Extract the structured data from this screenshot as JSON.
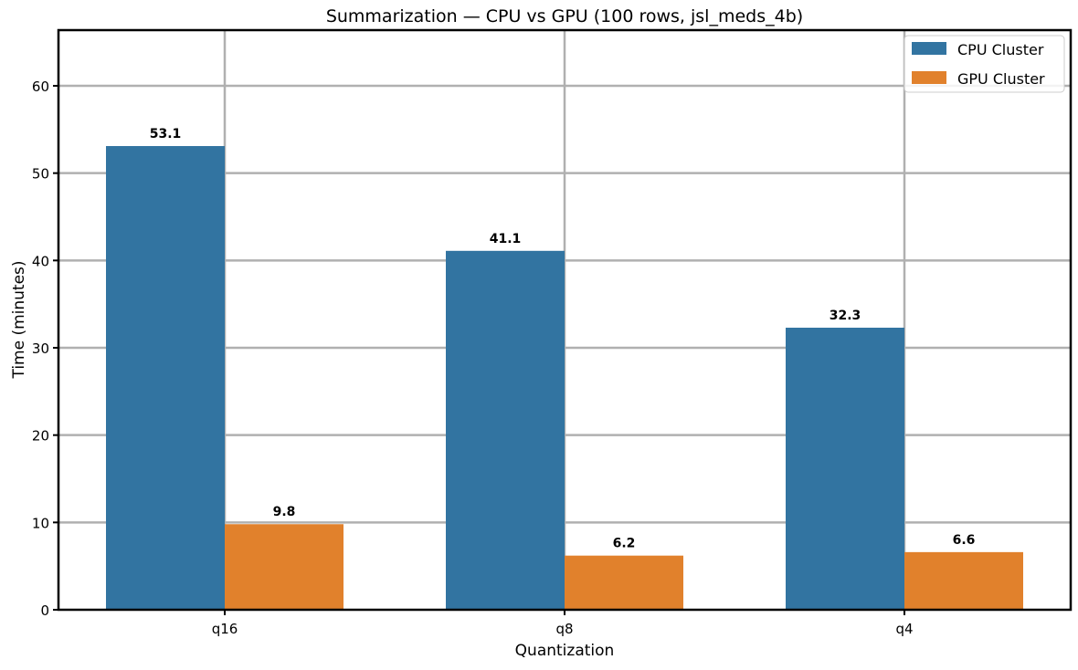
{
  "chart_data": {
    "type": "bar",
    "title": "Summarization — CPU vs GPU (100 rows, jsl_meds_4b)",
    "xlabel": "Quantization",
    "ylabel": "Time (minutes)",
    "categories": [
      "q16",
      "q8",
      "q4"
    ],
    "series": [
      {
        "name": "CPU Cluster",
        "color": "#3274a1",
        "values": [
          53.1,
          41.1,
          32.3
        ]
      },
      {
        "name": "GPU Cluster",
        "color": "#e1812c",
        "values": [
          9.8,
          6.2,
          6.6
        ]
      }
    ],
    "ylim": [
      0,
      66.3
    ],
    "yticks": [
      0,
      10,
      20,
      30,
      40,
      50,
      60
    ],
    "grid": true,
    "legend_position": "upper right",
    "data_labels": true
  }
}
